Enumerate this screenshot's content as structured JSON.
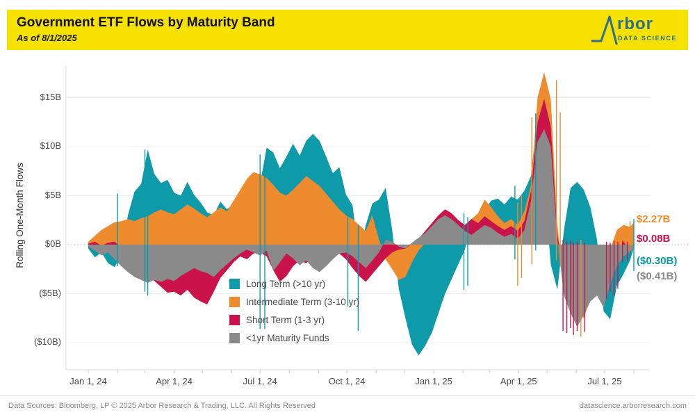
{
  "header": {
    "title": "Government ETF Flows by Maturity Band",
    "subtitle": "As of 8/1/2025",
    "logo_text": "rbor",
    "logo_tagline": "DATA SCIENCE"
  },
  "colors": {
    "banner_yellow": "#f6e100",
    "logo_blue": "#2d6e91",
    "grid": "#ececec",
    "axis": "#d8d8d8",
    "zero_dotted": "#b5b5b5"
  },
  "footer": {
    "left": "Data Sources: Bloomberg, LP © 2025 Arbor Research & Trading, LLC. All Rights Reserved",
    "right": "datascience.arborresearch.com"
  },
  "chart_data": {
    "type": "area",
    "title": "Government ETF Flows by Maturity Band",
    "subtitle": "As of 8/1/2025",
    "ylabel": "Rolling One-Month Flows",
    "ylim": [
      -12.5,
      18.5
    ],
    "grid": true,
    "legend_position": "inside-bottom-left-of-center",
    "x_start": "2024-01-01",
    "x_end": "2025-08-01",
    "interval_days": 7,
    "yticks": [
      {
        "v": 15,
        "label": "$15B"
      },
      {
        "v": 10,
        "label": "$10B"
      },
      {
        "v": 5,
        "label": "$5B"
      },
      {
        "v": 0,
        "label": "$0B"
      },
      {
        "v": -5,
        "label": "($5B)"
      },
      {
        "v": -10,
        "label": "($10B)"
      }
    ],
    "xticks": [
      {
        "d": 0,
        "label": "Jan 1, 24"
      },
      {
        "d": 91,
        "label": "Apr 1, 24"
      },
      {
        "d": 182,
        "label": "Jul 1, 24"
      },
      {
        "d": 274,
        "label": "Oct 1, 24"
      },
      {
        "d": 366,
        "label": "Jan 1, 25"
      },
      {
        "d": 456,
        "label": "Apr 1, 25"
      },
      {
        "d": 547,
        "label": "Jul 1, 25"
      }
    ],
    "month_ticks": [
      0,
      31,
      60,
      91,
      121,
      152,
      182,
      213,
      244,
      274,
      305,
      335,
      366,
      397,
      425,
      456,
      486,
      517,
      547,
      578
    ],
    "series": [
      {
        "name": "Long Term (>10 yr)",
        "color": "#0e9aa8",
        "end_label": "($0.30B)",
        "end_value": -0.3,
        "values": [
          -0.4,
          -1.3,
          -0.8,
          -1.9,
          -2.3,
          -1.0,
          3.0,
          5.4,
          6.2,
          9.7,
          7.2,
          6.3,
          6.6,
          5.3,
          5.0,
          6.4,
          5.1,
          4.3,
          3.3,
          3.0,
          4.4,
          3.6,
          4.2,
          3.1,
          2.7,
          3.5,
          6.2,
          9.9,
          9.4,
          7.8,
          9.0,
          10.3,
          9.1,
          10.6,
          11.3,
          10.6,
          9.0,
          7.3,
          7.9,
          5.1,
          4.0,
          -1.5,
          2.0,
          4.2,
          4.6,
          5.8,
          1.5,
          -4.5,
          -7.5,
          -10.2,
          -11.3,
          -10.3,
          -9.0,
          -7.0,
          -5.0,
          -3.5,
          -2.0,
          -0.5,
          2.2,
          3.0,
          3.6,
          4.5,
          4.7,
          4.1,
          4.9,
          4.6,
          5.5,
          7.0,
          13.4,
          6.0,
          -2.0,
          -4.6,
          1.5,
          5.8,
          6.4,
          5.6,
          3.8,
          0.5,
          -6.8,
          -7.6,
          -4.2,
          -3.0,
          -1.6,
          -0.3
        ]
      },
      {
        "name": "Intermediate Term (3-10 yr)",
        "color": "#ef8b2f",
        "end_label": "$2.27B",
        "end_value": 2.27,
        "values": [
          0.3,
          0.9,
          1.5,
          1.9,
          2.3,
          2.4,
          2.6,
          2.4,
          2.7,
          2.9,
          3.3,
          3.6,
          3.3,
          3.1,
          3.6,
          4.1,
          3.7,
          3.2,
          2.8,
          3.3,
          3.8,
          3.4,
          4.5,
          5.6,
          6.7,
          7.4,
          7.2,
          6.8,
          6.1,
          5.3,
          5.0,
          5.6,
          6.3,
          7.0,
          6.5,
          6.0,
          5.2,
          4.4,
          3.6,
          3.0,
          2.6,
          2.0,
          1.4,
          3.0,
          0.5,
          -1.5,
          -2.5,
          -3.6,
          -3.3,
          -1.8,
          -0.6,
          0.2,
          0.8,
          1.3,
          1.7,
          2.1,
          2.4,
          2.0,
          2.6,
          3.2,
          4.6,
          3.8,
          2.9,
          2.2,
          2.6,
          2.0,
          3.4,
          6.0,
          15.0,
          17.6,
          14.8,
          2.0,
          -4.5,
          -5.8,
          -6.6,
          -7.5,
          -5.5,
          -3.5,
          -2.0,
          -0.5,
          1.5,
          2.0,
          1.8,
          2.27
        ]
      },
      {
        "name": "Short Term (1-3 yr)",
        "color": "#c9134a",
        "end_label": "$0.08B",
        "end_value": 0.08,
        "values": [
          0.1,
          0.3,
          -0.1,
          0.2,
          0.3,
          -0.4,
          -1.2,
          -2.0,
          -2.6,
          -3.1,
          -3.7,
          -4.3,
          -4.9,
          -4.8,
          -5.2,
          -4.6,
          -5.4,
          -5.8,
          -6.1,
          -4.8,
          -3.4,
          -2.6,
          -1.8,
          -1.2,
          -1.5,
          -0.9,
          -0.8,
          -1.2,
          -2.6,
          -3.8,
          -3.2,
          -2.2,
          -1.6,
          -1.9,
          -1.3,
          -1.6,
          -1.9,
          -1.4,
          -0.9,
          -1.5,
          -2.4,
          -3.2,
          -3.8,
          -3.0,
          -2.2,
          -1.4,
          -0.8,
          -0.5,
          -0.4,
          0.1,
          0.6,
          1.4,
          2.2,
          3.0,
          3.6,
          3.2,
          2.5,
          2.0,
          2.6,
          2.2,
          2.9,
          2.4,
          1.9,
          1.5,
          1.9,
          1.4,
          2.4,
          5.5,
          12.5,
          14.9,
          12.0,
          1.0,
          -3.0,
          -1.5,
          -4.5,
          -2.0,
          -5.0,
          -1.0,
          -2.5,
          -0.8,
          -1.2,
          0.3,
          -0.6,
          0.08
        ]
      },
      {
        "name": "<1yr Maturity Funds",
        "color": "#8a8a8a",
        "end_label": "($0.41B)",
        "end_value": -0.41,
        "values": [
          -0.2,
          -0.6,
          -1.1,
          -0.8,
          -1.5,
          -2.2,
          -2.8,
          -3.3,
          -3.6,
          -3.9,
          -3.6,
          -3.8,
          -3.5,
          -3.7,
          -3.2,
          -2.8,
          -2.4,
          -2.7,
          -2.9,
          -3.3,
          -2.6,
          -2.0,
          -1.4,
          -0.9,
          -0.5,
          -0.8,
          -1.1,
          -0.6,
          -2.7,
          -1.8,
          -0.9,
          -1.4,
          -2.1,
          -1.6,
          -2.4,
          -2.8,
          -2.2,
          -1.5,
          -0.9,
          -0.8,
          -1.2,
          -1.8,
          -2.4,
          -1.6,
          -0.8,
          0.5,
          0.3,
          -0.2,
          -0.4,
          0.2,
          0.7,
          1.2,
          1.9,
          2.6,
          3.0,
          2.6,
          2.0,
          1.4,
          1.0,
          1.5,
          2.0,
          1.7,
          1.2,
          0.8,
          1.1,
          0.6,
          1.5,
          4.5,
          10.5,
          11.8,
          10.0,
          0.5,
          -5.2,
          -7.0,
          -8.4,
          -7.2,
          -5.8,
          -5.2,
          -6.4,
          -4.0,
          -2.2,
          -1.2,
          -0.7,
          -0.41
        ]
      }
    ],
    "spikes": [
      [
        0,
        31,
        5.2,
        -2.2
      ],
      [
        0,
        60,
        9.7,
        -4.8
      ],
      [
        0,
        63,
        7.0,
        -5.2
      ],
      [
        0,
        182,
        9.2,
        -8.6
      ],
      [
        0,
        187,
        8.6,
        -8.6
      ],
      [
        0,
        275,
        4.8,
        -6.3
      ],
      [
        0,
        286,
        2.0,
        -8.8
      ],
      [
        0,
        398,
        3.2,
        -4.6
      ],
      [
        0,
        402,
        2.8,
        -4.2
      ],
      [
        1,
        455,
        4.3,
        -4.2
      ],
      [
        1,
        459,
        5.0,
        -3.4
      ],
      [
        0,
        452,
        6.0,
        -1.5
      ],
      [
        1,
        470,
        13.0,
        -2.0
      ],
      [
        0,
        474,
        13.4,
        -0.6
      ],
      [
        1,
        496,
        16.8,
        -1.6
      ],
      [
        1,
        500,
        13.5,
        -2.2
      ],
      [
        2,
        503,
        0.5,
        -8.8
      ],
      [
        2,
        507,
        0.3,
        -9.0
      ],
      [
        2,
        511,
        0.4,
        -8.5
      ],
      [
        2,
        514,
        0.2,
        -9.2
      ],
      [
        2,
        518,
        0.3,
        -8.8
      ],
      [
        1,
        522,
        0.5,
        -9.4
      ],
      [
        2,
        526,
        0.2,
        -8.9
      ],
      [
        2,
        549,
        0.3,
        -5.5
      ],
      [
        2,
        553,
        0.2,
        -4.8
      ],
      [
        2,
        557,
        0.4,
        -5.2
      ],
      [
        2,
        561,
        0.3,
        -4.5
      ],
      [
        2,
        566,
        0.4,
        -1.8
      ],
      [
        2,
        571,
        0.3,
        -1.6
      ],
      [
        1,
        574,
        2.4,
        -0.6
      ],
      [
        0,
        578,
        2.6,
        -2.7
      ]
    ]
  }
}
